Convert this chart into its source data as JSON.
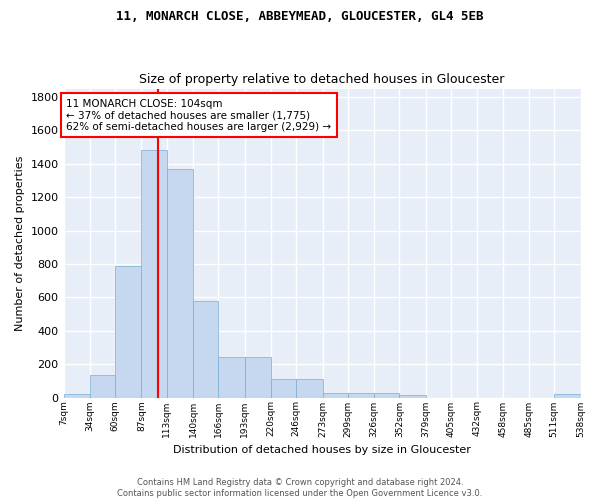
{
  "title1": "11, MONARCH CLOSE, ABBEYMEAD, GLOUCESTER, GL4 5EB",
  "title2": "Size of property relative to detached houses in Gloucester",
  "xlabel": "Distribution of detached houses by size in Gloucester",
  "ylabel": "Number of detached properties",
  "bins": [
    7,
    34,
    60,
    87,
    113,
    140,
    166,
    193,
    220,
    246,
    273,
    299,
    326,
    352,
    379,
    405,
    432,
    458,
    485,
    511,
    538
  ],
  "counts": [
    20,
    135,
    790,
    1480,
    1370,
    575,
    245,
    245,
    110,
    110,
    30,
    30,
    25,
    15,
    0,
    0,
    0,
    0,
    0,
    20
  ],
  "bar_color": "#c5d8f0",
  "bar_edge_color": "#7aadd4",
  "marker_value": 104,
  "marker_color": "red",
  "annotation_line1": "11 MONARCH CLOSE: 104sqm",
  "annotation_line2": "← 37% of detached houses are smaller (1,775)",
  "annotation_line3": "62% of semi-detached houses are larger (2,929) →",
  "annotation_box_color": "white",
  "annotation_box_edge_color": "red",
  "ylim": [
    0,
    1850
  ],
  "yticks": [
    0,
    200,
    400,
    600,
    800,
    1000,
    1200,
    1400,
    1600,
    1800
  ],
  "background_color": "#e8eef7",
  "grid_color": "white",
  "footnote1": "Contains HM Land Registry data © Crown copyright and database right 2024.",
  "footnote2": "Contains public sector information licensed under the Open Government Licence v3.0.",
  "fig_width": 6.0,
  "fig_height": 5.0,
  "dpi": 100
}
